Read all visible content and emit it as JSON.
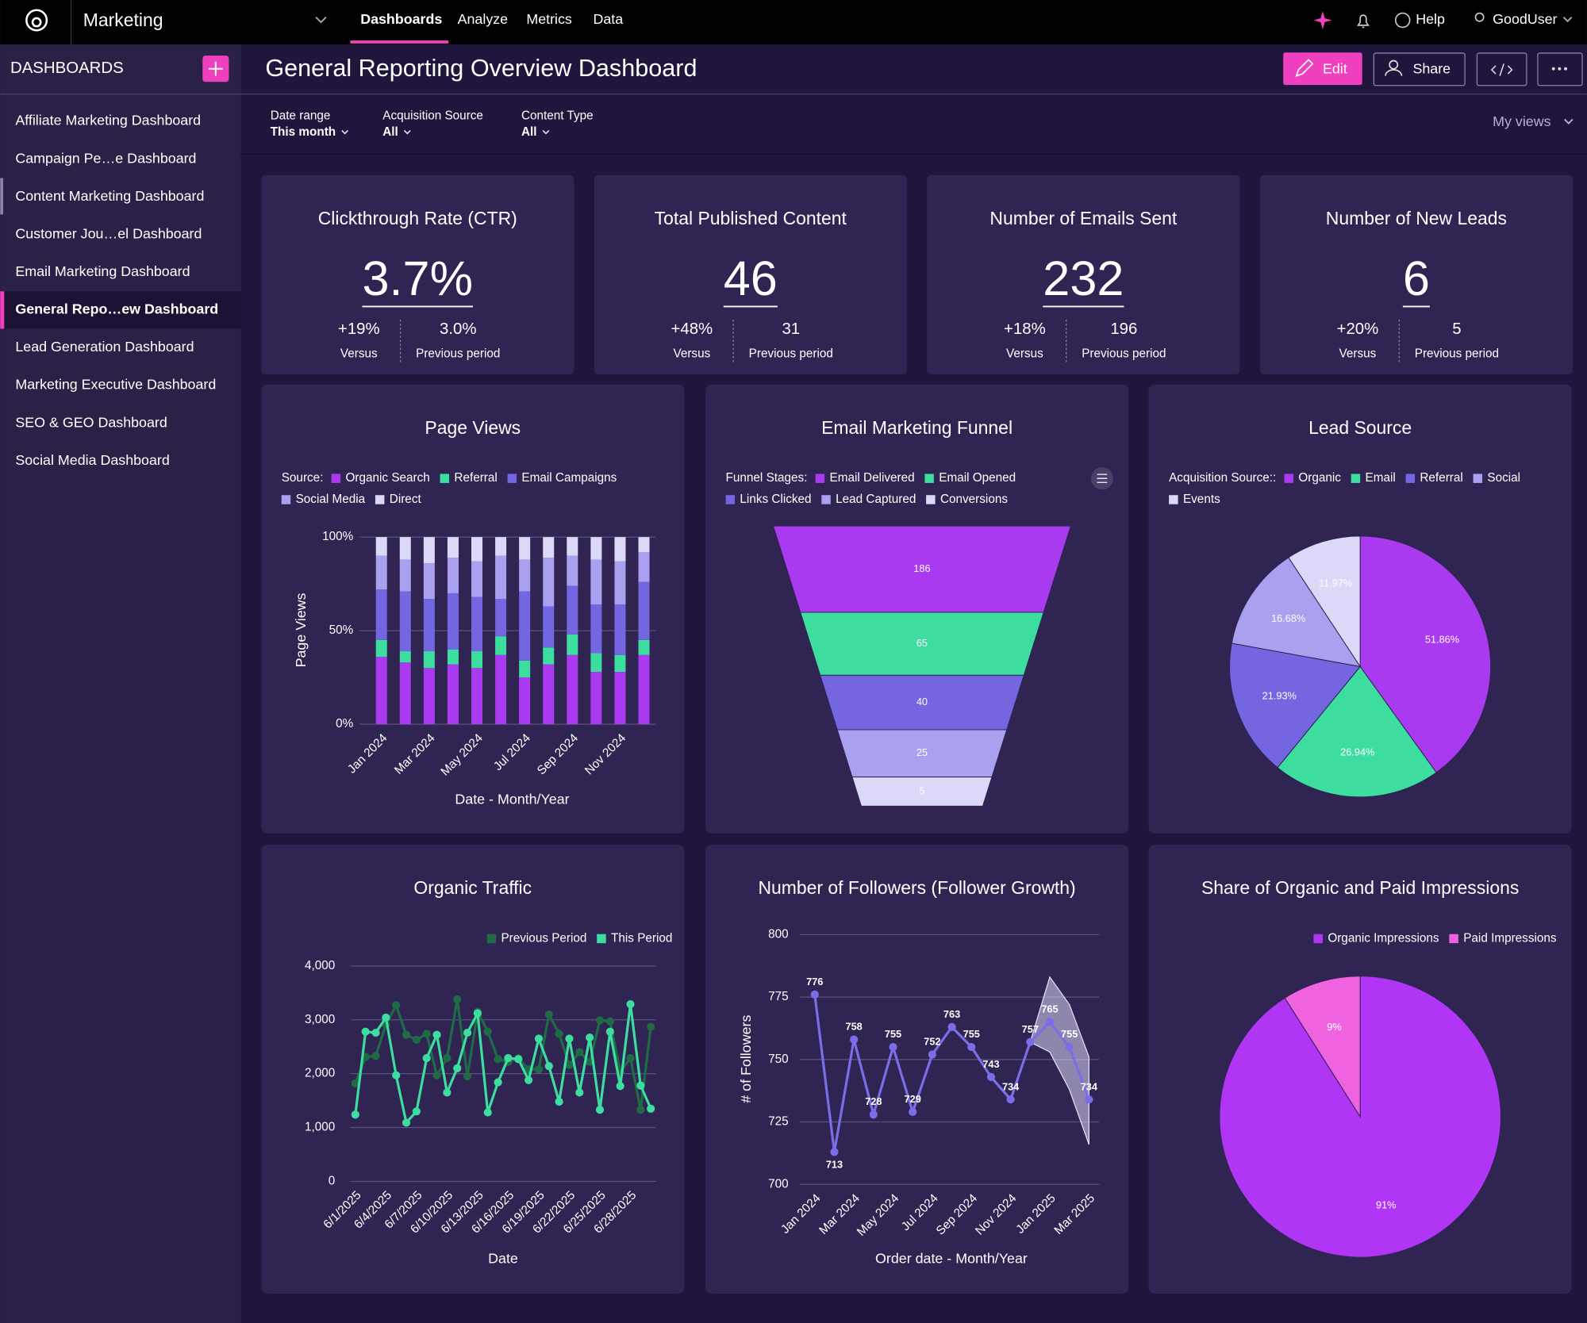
{
  "top_nav": {
    "workspace": "Marketing",
    "tabs": [
      "Dashboards",
      "Analyze",
      "Metrics",
      "Data"
    ],
    "help": "Help",
    "user": "GoodUser"
  },
  "sidebar": {
    "title": "DASHBOARDS",
    "items": [
      "Affiliate Marketing Dashboard",
      "Campaign Pe…e Dashboard",
      "Content Marketing Dashboard",
      "Customer Jou…el Dashboard",
      "Email Marketing Dashboard",
      "General Repo…ew Dashboard",
      "Lead Generation Dashboard",
      "Marketing Executive Dashboard",
      "SEO & GEO Dashboard",
      "Social Media Dashboard"
    ]
  },
  "header": {
    "title": "General Reporting Overview Dashboard",
    "edit": "Edit",
    "share": "Share"
  },
  "filters": [
    {
      "label": "Date range",
      "value": "This month"
    },
    {
      "label": "Acquisition Source",
      "value": "All"
    },
    {
      "label": "Content Type",
      "value": "All"
    }
  ],
  "my_views": "My views",
  "kpis": [
    {
      "title": "Clickthrough Rate (CTR)",
      "value": "3.7%",
      "change": "+19%",
      "change_label": "Versus",
      "previous": "3.0%",
      "previous_label": "Previous period"
    },
    {
      "title": "Total Published Content",
      "value": "46",
      "change": "+48%",
      "change_label": "Versus",
      "previous": "31",
      "previous_label": "Previous period"
    },
    {
      "title": "Number of Emails Sent",
      "value": "232",
      "change": "+18%",
      "change_label": "Versus",
      "previous": "196",
      "previous_label": "Previous period"
    },
    {
      "title": "Number of New Leads",
      "value": "6",
      "change": "+20%",
      "change_label": "Versus",
      "previous": "5",
      "previous_label": "Previous period"
    }
  ],
  "chart_data": [
    {
      "type": "bar",
      "stacked": true,
      "title": "Page Views",
      "legend_title": "Source:",
      "y_label": "Page Views",
      "x_label": "Date - Month/Year",
      "categories": [
        "Jan 2024",
        null,
        "Mar 2024",
        null,
        "May 2024",
        null,
        "Jul 2024",
        null,
        "Sep 2024",
        null,
        "Nov 2024",
        null
      ],
      "series": [
        {
          "name": "Organic Search",
          "color": "#a93af0",
          "values": [
            36,
            33,
            30,
            32,
            30,
            37,
            25,
            32,
            37,
            28,
            28,
            37
          ]
        },
        {
          "name": "Referral",
          "color": "#3ddc9f",
          "values": [
            9,
            6,
            9,
            8,
            9,
            10,
            9,
            9,
            11,
            10,
            9,
            8
          ]
        },
        {
          "name": "Email Campaigns",
          "color": "#7366e0",
          "values": [
            27,
            32,
            28,
            30,
            29,
            20,
            37,
            22,
            26,
            26,
            27,
            31
          ]
        },
        {
          "name": "Social Media",
          "color": "#a9a0f0",
          "values": [
            18,
            17,
            19,
            19,
            19,
            23,
            17,
            26,
            16,
            24,
            23,
            16
          ]
        },
        {
          "name": "Direct",
          "color": "#dcd8f8",
          "values": [
            10,
            12,
            14,
            11,
            13,
            10,
            12,
            11,
            10,
            12,
            13,
            8
          ]
        }
      ],
      "ylim": [
        0,
        100
      ],
      "yticks": [
        {
          "value": 0,
          "label": "0%"
        },
        {
          "value": 50,
          "label": "50%"
        },
        {
          "value": 100,
          "label": "100%"
        }
      ],
      "grid": true
    },
    {
      "type": "funnel",
      "title": "Email Marketing Funnel",
      "legend_title": "Funnel Stages:",
      "categories": [
        "Email Delivered",
        "Email Opened",
        "Links Clicked",
        "Lead Captured",
        "Conversions"
      ],
      "values": [
        186,
        65,
        40,
        25,
        5
      ],
      "colors": [
        "#a93af0",
        "#3ddc9f",
        "#7366e0",
        "#a9a0f0",
        "#dcd8f8"
      ]
    },
    {
      "type": "pie",
      "title": "Lead Source",
      "legend_title": "Acquisition Source::",
      "categories": [
        "Organic",
        "Email",
        "Referral",
        "Social",
        "Events"
      ],
      "values": [
        51.86,
        26.94,
        21.93,
        16.68,
        11.97
      ],
      "value_labels": [
        "51.86%",
        "26.94%",
        "21.93%",
        "16.68%",
        "11.97%"
      ],
      "colors": [
        "#a93af0",
        "#3ddc9f",
        "#7366e0",
        "#a9a0f0",
        "#dcd8f8"
      ]
    },
    {
      "type": "line",
      "title": "Organic Traffic",
      "x_label": "Date",
      "categories": [
        "6/1/2025",
        null,
        null,
        "6/4/2025",
        null,
        null,
        "6/7/2025",
        null,
        null,
        "6/10/2025",
        null,
        null,
        "6/13/2025",
        null,
        null,
        "6/16/2025",
        null,
        null,
        "6/19/2025",
        null,
        null,
        "6/22/2025",
        null,
        null,
        "6/25/2025",
        null,
        null,
        "6/28/2025",
        null,
        null
      ],
      "series": [
        {
          "name": "Previous Period",
          "color": "#1e6b45",
          "values": [
            1820,
            2310,
            2330,
            2910,
            3270,
            2720,
            2630,
            2740,
            1970,
            2290,
            3380,
            1950,
            3150,
            2780,
            2270,
            2220,
            2290,
            2080,
            2080,
            3100,
            2740,
            2160,
            2400,
            2220,
            2990,
            2970,
            2030,
            2290,
            1330,
            2870
          ]
        },
        {
          "name": "This Period",
          "color": "#3ddc9f",
          "values": [
            1240,
            2780,
            2760,
            3040,
            1970,
            1090,
            1300,
            2290,
            2720,
            1650,
            2100,
            2760,
            3120,
            1280,
            1840,
            2290,
            2270,
            1880,
            2650,
            2140,
            1480,
            2650,
            1650,
            2670,
            1330,
            2780,
            1770,
            3290,
            1780,
            1350
          ]
        }
      ],
      "ylim": [
        0,
        4000
      ],
      "yticks": [
        0,
        {
          "value": 1000,
          "label": "1,000"
        },
        {
          "value": 2000,
          "label": "2,000"
        },
        {
          "value": 3000,
          "label": "3,000"
        },
        {
          "value": 4000,
          "label": "4,000"
        }
      ],
      "grid": true
    },
    {
      "type": "line",
      "title": "Number of Followers (Follower Growth)",
      "y_label": "# of Followers",
      "x_label": "Order date - Month/Year",
      "data_labels": true,
      "categories": [
        "Jan 2024",
        null,
        "Mar 2024",
        null,
        "May 2024",
        null,
        "Jul 2024",
        null,
        "Sep 2024",
        null,
        "Nov 2024",
        null,
        "Jan 2025",
        null,
        "Mar 2025"
      ],
      "series": [
        {
          "color": "#7a6ee8",
          "values": [
            776,
            713,
            758,
            728,
            755,
            729,
            752,
            763,
            755,
            743,
            734,
            757,
            765,
            755,
            734
          ]
        }
      ],
      "band": {
        "upper": [
          null,
          null,
          null,
          null,
          null,
          null,
          null,
          null,
          null,
          null,
          null,
          757,
          783,
          772,
          751
        ],
        "lower": [
          null,
          null,
          null,
          null,
          null,
          null,
          null,
          null,
          null,
          null,
          null,
          757,
          753,
          738,
          716
        ]
      },
      "ylim": [
        700,
        800
      ],
      "yticks": [
        700,
        725,
        750,
        775,
        800
      ],
      "grid": true
    },
    {
      "type": "pie",
      "title": "Share of Organic and Paid Impressions",
      "categories": [
        "Organic Impressions",
        "Paid Impressions"
      ],
      "values": [
        91,
        9
      ],
      "value_labels": [
        "91%",
        "9%"
      ],
      "colors": [
        "#b035f5",
        "#f063e0"
      ]
    }
  ]
}
